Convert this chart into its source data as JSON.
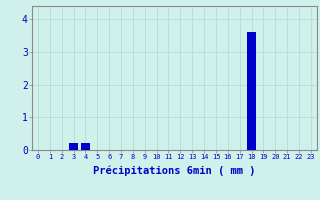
{
  "categories": [
    0,
    1,
    2,
    3,
    4,
    5,
    6,
    7,
    8,
    9,
    10,
    11,
    12,
    13,
    14,
    15,
    16,
    17,
    18,
    19,
    20,
    21,
    22,
    23
  ],
  "values": [
    0,
    0,
    0,
    0.2,
    0.2,
    0,
    0,
    0,
    0,
    0,
    0,
    0,
    0,
    0,
    0,
    0,
    0,
    0,
    3.6,
    0,
    0,
    0,
    0,
    0
  ],
  "bar_color": "#0000cc",
  "background_color": "#d0f0ec",
  "grid_color": "#b0d8d0",
  "xlabel": "Précipitations 6min ( mm )",
  "ylabel_ticks": [
    0,
    1,
    2,
    3,
    4
  ],
  "ylim": [
    0,
    4.4
  ],
  "xlim": [
    -0.5,
    23.5
  ],
  "tick_color": "#0000bb",
  "label_color": "#0000cc",
  "axis_color": "#999999",
  "spine_color": "#888888"
}
